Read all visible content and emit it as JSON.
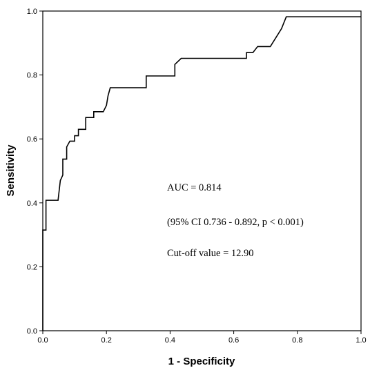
{
  "chart_data": {
    "type": "line",
    "title": "",
    "xlabel": "1 - Specificity",
    "ylabel": "Sensitivity",
    "xlim": [
      0,
      1
    ],
    "ylim": [
      0,
      1
    ],
    "x_ticks": [
      "0.0",
      "0.2",
      "0.4",
      "0.6",
      "0.8",
      "1.0"
    ],
    "y_ticks": [
      "0.0",
      "0.2",
      "0.4",
      "0.6",
      "0.8",
      "1.0"
    ],
    "grid": false,
    "legend": "none",
    "series": [
      {
        "color": "#000000",
        "points": [
          [
            0.0,
            0.0
          ],
          [
            0.0,
            0.315
          ],
          [
            0.01,
            0.315
          ],
          [
            0.01,
            0.408
          ],
          [
            0.048,
            0.408
          ],
          [
            0.055,
            0.47
          ],
          [
            0.063,
            0.487
          ],
          [
            0.063,
            0.537
          ],
          [
            0.075,
            0.537
          ],
          [
            0.075,
            0.575
          ],
          [
            0.085,
            0.593
          ],
          [
            0.1,
            0.593
          ],
          [
            0.1,
            0.61
          ],
          [
            0.112,
            0.61
          ],
          [
            0.112,
            0.63
          ],
          [
            0.135,
            0.63
          ],
          [
            0.135,
            0.667
          ],
          [
            0.16,
            0.667
          ],
          [
            0.16,
            0.685
          ],
          [
            0.19,
            0.685
          ],
          [
            0.2,
            0.705
          ],
          [
            0.205,
            0.735
          ],
          [
            0.212,
            0.76
          ],
          [
            0.325,
            0.76
          ],
          [
            0.325,
            0.797
          ],
          [
            0.415,
            0.797
          ],
          [
            0.415,
            0.833
          ],
          [
            0.435,
            0.852
          ],
          [
            0.64,
            0.852
          ],
          [
            0.64,
            0.87
          ],
          [
            0.66,
            0.87
          ],
          [
            0.675,
            0.889
          ],
          [
            0.715,
            0.889
          ],
          [
            0.75,
            0.945
          ],
          [
            0.765,
            0.982
          ],
          [
            1.0,
            0.982
          ]
        ]
      }
    ],
    "annotations": [
      "AUC = 0.814",
      "(95% CI 0.736 - 0.892, p < 0.001)",
      "Cut-off value = 12.90"
    ]
  }
}
